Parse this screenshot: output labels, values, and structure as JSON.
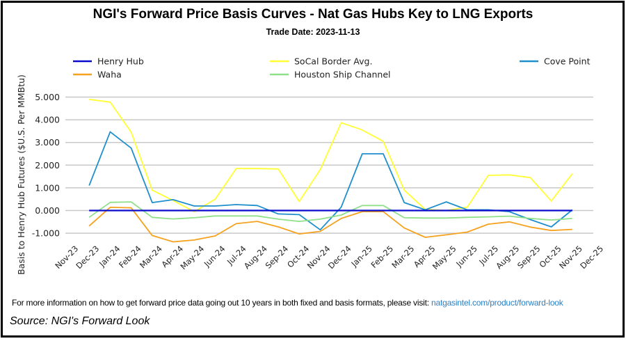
{
  "chart_data": {
    "type": "line",
    "title": "NGI's Forward Price Basis Curves - Nat Gas Hubs Key to LNG Exports",
    "subtitle": "Trade Date: 2023-11-13",
    "xlabel": "",
    "ylabel": "Basis to Henry Hub Futures ($U.S. Per MMBtu)",
    "ylim": [
      -2,
      5
    ],
    "yticks": [
      "5.000",
      "4.000",
      "3.000",
      "2.000",
      "1.000",
      "0.000",
      "-1.000"
    ],
    "ytick_values": [
      5,
      4,
      3,
      2,
      1,
      0,
      -1
    ],
    "xticks": [
      "Nov-23",
      "Dec-23",
      "Jan-24",
      "Feb-24",
      "Mar-24",
      "Apr-24",
      "May-24",
      "Jun-24",
      "Jul-24",
      "Aug-24",
      "Sep-24",
      "Oct-24",
      "Nov-24",
      "Dec-24",
      "Jan-25",
      "Feb-25",
      "Mar-25",
      "Apr-25",
      "May-25",
      "Jun-25",
      "Jul-25",
      "Aug-25",
      "Sep-25",
      "Oct-25",
      "Nov-25",
      "Dec-25"
    ],
    "x": [
      "Dec-23",
      "Jan-24",
      "Feb-24",
      "Mar-24",
      "Apr-24",
      "May-24",
      "Jun-24",
      "Jul-24",
      "Aug-24",
      "Sep-24",
      "Oct-24",
      "Nov-24",
      "Dec-24",
      "Jan-25",
      "Feb-25",
      "Mar-25",
      "Apr-25",
      "May-25",
      "Jun-25",
      "Jul-25",
      "Aug-25",
      "Sep-25",
      "Oct-25",
      "Nov-25"
    ],
    "grid": true,
    "legend_position": "top",
    "series": [
      {
        "name": "Henry Hub",
        "color": "#0a0acc",
        "values": [
          0,
          0,
          0,
          0,
          0,
          0,
          0,
          0,
          0,
          0,
          0,
          0,
          0,
          0,
          0,
          0,
          0,
          0,
          0,
          0,
          0,
          0,
          0,
          0
        ]
      },
      {
        "name": "SoCal Border Avg.",
        "color": "#ffff33",
        "values": [
          4.9,
          4.78,
          3.45,
          0.9,
          0.44,
          -0.05,
          0.5,
          1.85,
          1.85,
          1.83,
          0.4,
          1.8,
          3.87,
          3.55,
          3.05,
          0.9,
          0.05,
          0.0,
          0.15,
          1.55,
          1.57,
          1.45,
          0.42,
          1.62
        ]
      },
      {
        "name": "Cove Point",
        "color": "#1f8fcc",
        "values": [
          1.1,
          3.47,
          2.75,
          0.35,
          0.48,
          0.2,
          0.2,
          0.26,
          0.22,
          -0.15,
          -0.18,
          -0.85,
          0.15,
          2.5,
          2.5,
          0.35,
          0.03,
          0.38,
          0.03,
          0.03,
          -0.05,
          -0.4,
          -0.72,
          0.03
        ]
      },
      {
        "name": "Waha",
        "color": "#f5a21e",
        "values": [
          -0.68,
          0.14,
          0.12,
          -1.1,
          -1.38,
          -1.3,
          -1.12,
          -0.58,
          -0.48,
          -0.72,
          -1.03,
          -0.92,
          -0.35,
          -0.05,
          -0.05,
          -0.77,
          -1.18,
          -1.07,
          -0.95,
          -0.6,
          -0.5,
          -0.73,
          -0.88,
          -0.83
        ]
      },
      {
        "name": "Houston Ship Channel",
        "color": "#90e08a",
        "values": [
          -0.3,
          0.36,
          0.38,
          -0.3,
          -0.37,
          -0.32,
          -0.24,
          -0.24,
          -0.24,
          -0.38,
          -0.48,
          -0.38,
          -0.2,
          0.22,
          0.22,
          -0.32,
          -0.33,
          -0.33,
          -0.3,
          -0.28,
          -0.25,
          -0.35,
          -0.42,
          -0.35
        ]
      }
    ]
  },
  "footer": {
    "note": "For more information on how to get forward price data going out 10 years in both fixed and basis formats, please visit:",
    "link": "natgasintel.com/product/forward-look",
    "source": "Source: NGI's Forward Look"
  }
}
